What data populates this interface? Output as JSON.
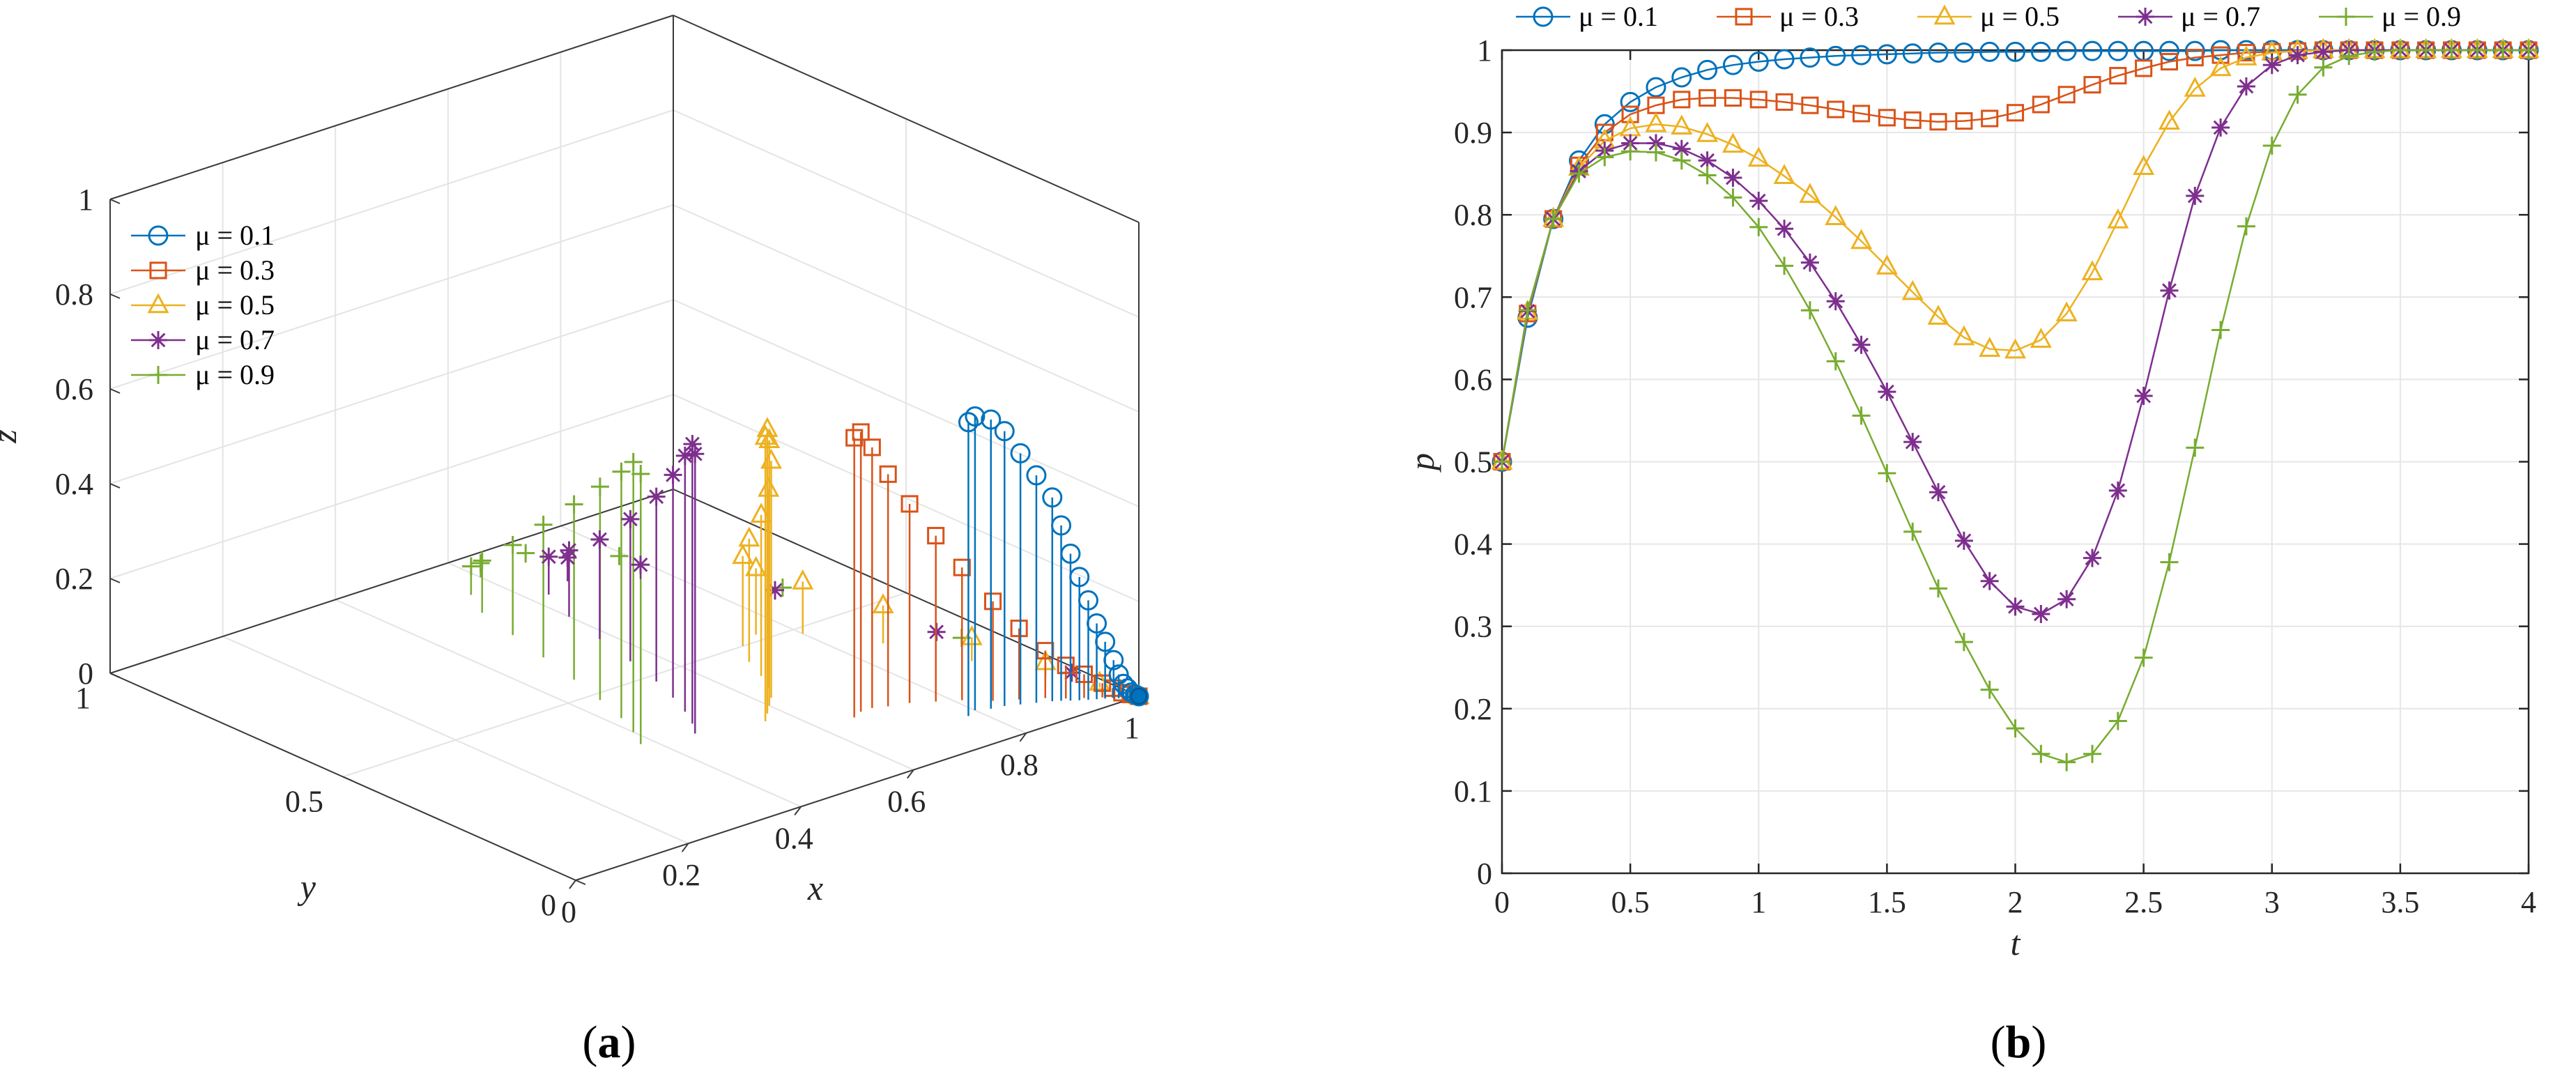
{
  "chart_data": [
    {
      "panel": "(a)",
      "type": "scatter",
      "variant": "3d-stem",
      "xlabel": "x",
      "ylabel": "y",
      "zlabel": "z",
      "xlim": [
        0,
        1
      ],
      "ylim": [
        0,
        1
      ],
      "zlim": [
        0,
        1
      ],
      "xticks": [
        "0",
        "0.2",
        "0.4",
        "0.6",
        "0.8",
        "1"
      ],
      "yticks": [
        "0",
        "0.5",
        "1"
      ],
      "zticks": [
        "0",
        "0.2",
        "0.4",
        "0.6",
        "0.8",
        "1"
      ],
      "grid": true,
      "legend_position": "upper-left",
      "series": [
        {
          "name": "μ = 0.1",
          "color": "#0072BD",
          "marker": "circle",
          "points": [
            [
              0.78,
              0.1,
              0.62
            ],
            [
              0.8,
              0.11,
              0.62
            ],
            [
              0.82,
              0.1,
              0.61
            ],
            [
              0.84,
              0.095,
              0.58
            ],
            [
              0.86,
              0.085,
              0.53
            ],
            [
              0.88,
              0.075,
              0.48
            ],
            [
              0.9,
              0.065,
              0.43
            ],
            [
              0.91,
              0.058,
              0.37
            ],
            [
              0.92,
              0.05,
              0.31
            ],
            [
              0.93,
              0.043,
              0.26
            ],
            [
              0.94,
              0.036,
              0.21
            ],
            [
              0.95,
              0.03,
              0.16
            ],
            [
              0.96,
              0.024,
              0.12
            ],
            [
              0.97,
              0.018,
              0.08
            ],
            [
              0.975,
              0.013,
              0.05
            ],
            [
              0.98,
              0.009,
              0.03
            ],
            [
              0.985,
              0.006,
              0.02
            ],
            [
              0.99,
              0.004,
              0.01
            ],
            [
              0.995,
              0.002,
              0.005
            ],
            [
              1.0,
              0.0,
              0.0
            ]
          ]
        },
        {
          "name": "μ = 0.3",
          "color": "#D95319",
          "marker": "square",
          "points": [
            [
              0.66,
              0.2,
              0.59
            ],
            [
              0.68,
              0.21,
              0.59
            ],
            [
              0.7,
              0.21,
              0.55
            ],
            [
              0.72,
              0.2,
              0.49
            ],
            [
              0.75,
              0.19,
              0.42
            ],
            [
              0.78,
              0.17,
              0.35
            ],
            [
              0.81,
              0.15,
              0.28
            ],
            [
              0.84,
              0.12,
              0.21
            ],
            [
              0.87,
              0.1,
              0.15
            ],
            [
              0.9,
              0.08,
              0.1
            ],
            [
              0.92,
              0.06,
              0.07
            ],
            [
              0.94,
              0.045,
              0.05
            ],
            [
              0.96,
              0.03,
              0.03
            ],
            [
              0.97,
              0.02,
              0.02
            ],
            [
              0.98,
              0.012,
              0.01
            ],
            [
              0.99,
              0.006,
              0.005
            ],
            [
              1.0,
              0.0,
              0.0
            ]
          ]
        },
        {
          "name": "μ = 0.5",
          "color": "#EDB120",
          "marker": "triangle",
          "points": [
            [
              0.56,
              0.27,
              0.6
            ],
            [
              0.58,
              0.29,
              0.6
            ],
            [
              0.6,
              0.31,
              0.56
            ],
            [
              0.62,
              0.33,
              0.5
            ],
            [
              0.64,
              0.36,
              0.42
            ],
            [
              0.66,
              0.4,
              0.34
            ],
            [
              0.68,
              0.45,
              0.26
            ],
            [
              0.71,
              0.5,
              0.19
            ],
            [
              0.75,
              0.52,
              0.14
            ],
            [
              0.8,
              0.48,
              0.11
            ],
            [
              0.86,
              0.38,
              0.08
            ],
            [
              0.91,
              0.25,
              0.05
            ],
            [
              0.95,
              0.14,
              0.03
            ],
            [
              0.98,
              0.06,
              0.01
            ],
            [
              1.0,
              0.0,
              0.0
            ]
          ]
        },
        {
          "name": "μ = 0.7",
          "color": "#7E2F8E",
          "marker": "asterisk",
          "points": [
            [
              0.46,
              0.3,
              0.59
            ],
            [
              0.48,
              0.33,
              0.59
            ],
            [
              0.5,
              0.37,
              0.54
            ],
            [
              0.52,
              0.42,
              0.47
            ],
            [
              0.54,
              0.48,
              0.39
            ],
            [
              0.56,
              0.56,
              0.3
            ],
            [
              0.58,
              0.65,
              0.21
            ],
            [
              0.6,
              0.74,
              0.14
            ],
            [
              0.63,
              0.82,
              0.08
            ],
            [
              0.68,
              0.84,
              0.05
            ],
            [
              0.76,
              0.78,
              0.03
            ],
            [
              0.85,
              0.6,
              0.02
            ],
            [
              0.93,
              0.35,
              0.01
            ],
            [
              0.98,
              0.12,
              0.005
            ],
            [
              1.0,
              0.0,
              0.0
            ]
          ]
        },
        {
          "name": "μ = 0.9",
          "color": "#77AC30",
          "marker": "plus",
          "points": [
            [
              0.38,
              0.32,
              0.57
            ],
            [
              0.4,
              0.36,
              0.57
            ],
            [
              0.42,
              0.41,
              0.52
            ],
            [
              0.44,
              0.48,
              0.45
            ],
            [
              0.46,
              0.56,
              0.37
            ],
            [
              0.48,
              0.65,
              0.28
            ],
            [
              0.5,
              0.74,
              0.19
            ],
            [
              0.52,
              0.83,
              0.11
            ],
            [
              0.55,
              0.89,
              0.06
            ],
            [
              0.6,
              0.93,
              0.03
            ],
            [
              0.68,
              0.93,
              0.02
            ],
            [
              0.78,
              0.85,
              0.01
            ],
            [
              0.88,
              0.62,
              0.005
            ],
            [
              0.95,
              0.32,
              0.003
            ],
            [
              1.0,
              0.0,
              0.0
            ]
          ]
        }
      ]
    },
    {
      "panel": "(b)",
      "type": "line",
      "xlabel": "t",
      "ylabel": "p",
      "xlim": [
        0,
        4
      ],
      "ylim": [
        0,
        1
      ],
      "xticks": [
        "0",
        "0.5",
        "1",
        "1.5",
        "2",
        "2.5",
        "3",
        "3.5",
        "4"
      ],
      "yticks": [
        "0",
        "0.1",
        "0.2",
        "0.3",
        "0.4",
        "0.5",
        "0.6",
        "0.7",
        "0.8",
        "0.9",
        "1"
      ],
      "grid": true,
      "legend_position": "top-outside",
      "x": [
        0,
        0.1,
        0.2,
        0.3,
        0.4,
        0.5,
        0.6,
        0.7,
        0.8,
        0.9,
        1.0,
        1.1,
        1.2,
        1.3,
        1.4,
        1.5,
        1.6,
        1.7,
        1.8,
        1.9,
        2.0,
        2.1,
        2.2,
        2.3,
        2.4,
        2.5,
        2.6,
        2.7,
        2.8,
        2.9,
        3.0,
        3.1,
        3.2,
        3.3,
        3.4,
        3.5,
        3.6,
        3.7,
        3.8,
        3.9,
        4.0
      ],
      "series": [
        {
          "name": "μ = 0.1",
          "color": "#0072BD",
          "marker": "circle",
          "values": [
            0.5,
            0.675,
            0.795,
            0.866,
            0.91,
            0.937,
            0.955,
            0.967,
            0.976,
            0.982,
            0.986,
            0.989,
            0.991,
            0.993,
            0.994,
            0.995,
            0.996,
            0.997,
            0.997,
            0.998,
            0.998,
            0.998,
            0.999,
            0.999,
            0.999,
            0.999,
            0.999,
            0.999,
            1.0,
            1.0,
            1.0,
            1.0,
            1.0,
            1.0,
            1.0,
            1.0,
            1.0,
            1.0,
            1.0,
            1.0,
            1.0
          ]
        },
        {
          "name": "μ = 0.3",
          "color": "#D95319",
          "marker": "square",
          "values": [
            0.5,
            0.68,
            0.795,
            0.86,
            0.9,
            0.922,
            0.933,
            0.94,
            0.942,
            0.942,
            0.94,
            0.937,
            0.933,
            0.928,
            0.923,
            0.918,
            0.915,
            0.913,
            0.914,
            0.917,
            0.924,
            0.934,
            0.946,
            0.958,
            0.969,
            0.978,
            0.986,
            0.991,
            0.994,
            0.997,
            0.998,
            0.999,
            1.0,
            1.0,
            1.0,
            1.0,
            1.0,
            1.0,
            1.0,
            1.0,
            1.0
          ]
        },
        {
          "name": "μ = 0.5",
          "color": "#EDB120",
          "marker": "triangle",
          "values": [
            0.5,
            0.682,
            0.795,
            0.857,
            0.89,
            0.905,
            0.91,
            0.907,
            0.898,
            0.885,
            0.868,
            0.847,
            0.824,
            0.797,
            0.768,
            0.737,
            0.706,
            0.676,
            0.651,
            0.637,
            0.635,
            0.648,
            0.68,
            0.73,
            0.793,
            0.858,
            0.913,
            0.953,
            0.978,
            0.991,
            0.997,
            0.999,
            1.0,
            1.0,
            1.0,
            1.0,
            1.0,
            1.0,
            1.0,
            1.0,
            1.0
          ]
        },
        {
          "name": "μ = 0.7",
          "color": "#7E2F8E",
          "marker": "asterisk",
          "values": [
            0.5,
            0.683,
            0.795,
            0.853,
            0.878,
            0.887,
            0.887,
            0.88,
            0.866,
            0.845,
            0.817,
            0.783,
            0.742,
            0.695,
            0.642,
            0.585,
            0.524,
            0.463,
            0.404,
            0.355,
            0.324,
            0.315,
            0.333,
            0.383,
            0.465,
            0.58,
            0.708,
            0.823,
            0.906,
            0.956,
            0.982,
            0.994,
            0.998,
            1.0,
            1.0,
            1.0,
            1.0,
            1.0,
            1.0,
            1.0,
            1.0
          ]
        },
        {
          "name": "μ = 0.9",
          "color": "#77AC30",
          "marker": "plus",
          "values": [
            0.5,
            0.684,
            0.795,
            0.85,
            0.87,
            0.877,
            0.876,
            0.866,
            0.848,
            0.821,
            0.785,
            0.738,
            0.684,
            0.622,
            0.556,
            0.486,
            0.415,
            0.346,
            0.281,
            0.223,
            0.176,
            0.145,
            0.135,
            0.145,
            0.185,
            0.262,
            0.378,
            0.517,
            0.66,
            0.786,
            0.884,
            0.946,
            0.979,
            0.993,
            0.998,
            1.0,
            1.0,
            1.0,
            1.0,
            1.0,
            1.0
          ]
        }
      ]
    }
  ],
  "panel_labels": {
    "a": "a",
    "b": "b"
  }
}
